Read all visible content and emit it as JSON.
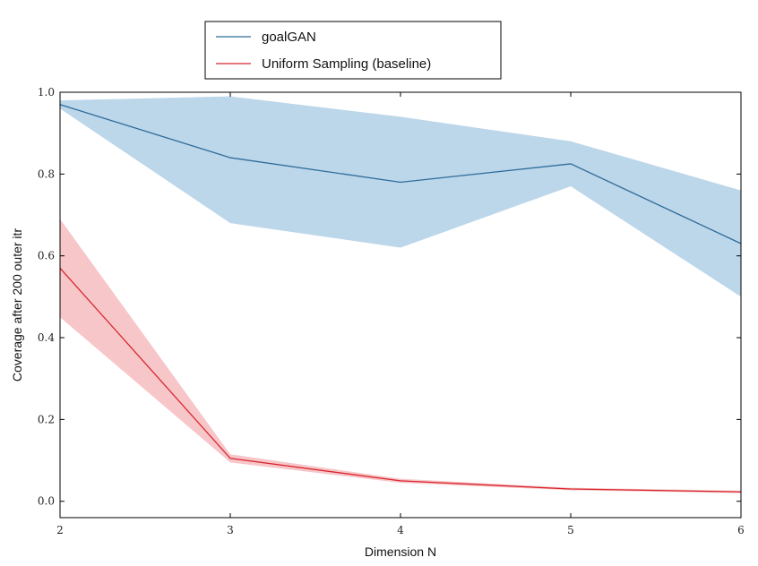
{
  "chart_data": {
    "type": "line",
    "title": "",
    "xlabel": "Dimension N",
    "ylabel": "Coverage after 200 outer itr",
    "xlim": [
      2,
      6
    ],
    "ylim": [
      -0.04,
      1.0
    ],
    "x_ticks": [
      2,
      3,
      4,
      5,
      6
    ],
    "x_tick_labels": [
      "2",
      "3",
      "4",
      "5",
      "6"
    ],
    "y_ticks": [
      0.0,
      0.2,
      0.4,
      0.6,
      0.8,
      1.0
    ],
    "y_tick_labels": [
      "0.0",
      "0.2",
      "0.4",
      "0.6",
      "0.8",
      "1.0"
    ],
    "grid": false,
    "legend_position": "top-center",
    "x": [
      2,
      3,
      4,
      5,
      6
    ],
    "series": [
      {
        "name": "goalGAN",
        "color": "#2f6d9a",
        "band_color": "#a6c8e3",
        "values": [
          0.97,
          0.84,
          0.78,
          0.825,
          0.63
        ],
        "lower": [
          0.96,
          0.68,
          0.62,
          0.77,
          0.5
        ],
        "upper": [
          0.98,
          0.99,
          0.94,
          0.88,
          0.76
        ]
      },
      {
        "name": "Uniform Sampling (baseline)",
        "color": "#d8262e",
        "band_color": "#f4b3b7",
        "values": [
          0.57,
          0.105,
          0.05,
          0.03,
          0.023
        ],
        "lower": [
          0.45,
          0.095,
          0.045,
          0.027,
          0.02
        ],
        "upper": [
          0.69,
          0.115,
          0.055,
          0.033,
          0.026
        ]
      }
    ]
  }
}
